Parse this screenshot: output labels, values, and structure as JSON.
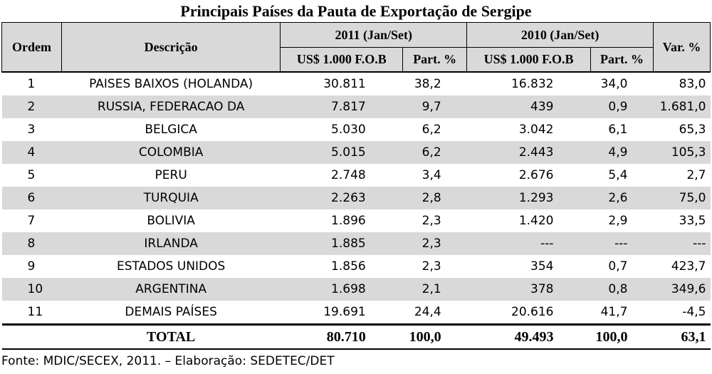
{
  "title": "Principais Países da Pauta de Exportação de Sergipe",
  "headers": {
    "ordem": "Ordem",
    "descricao": "Descrição",
    "period_2011": "2011 (Jan/Set)",
    "period_2010": "2010 (Jan/Set)",
    "value_col": "US$ 1.000 F.O.B",
    "part_col": "Part. %",
    "var_col": "Var. %"
  },
  "rows": [
    {
      "ordem": "1",
      "descricao": "PAISES BAIXOS (HOLANDA)",
      "v2011": "30.811",
      "p2011": "38,2",
      "v2010": "16.832",
      "p2010": "34,0",
      "var": "83,0"
    },
    {
      "ordem": "2",
      "descricao": "RUSSIA, FEDERACAO DA",
      "v2011": "7.817",
      "p2011": "9,7",
      "v2010": "439",
      "p2010": "0,9",
      "var": "1.681,0"
    },
    {
      "ordem": "3",
      "descricao": "BELGICA",
      "v2011": "5.030",
      "p2011": "6,2",
      "v2010": "3.042",
      "p2010": "6,1",
      "var": "65,3"
    },
    {
      "ordem": "4",
      "descricao": "COLOMBIA",
      "v2011": "5.015",
      "p2011": "6,2",
      "v2010": "2.443",
      "p2010": "4,9",
      "var": "105,3"
    },
    {
      "ordem": "5",
      "descricao": "PERU",
      "v2011": "2.748",
      "p2011": "3,4",
      "v2010": "2.676",
      "p2010": "5,4",
      "var": "2,7"
    },
    {
      "ordem": "6",
      "descricao": "TURQUIA",
      "v2011": "2.263",
      "p2011": "2,8",
      "v2010": "1.293",
      "p2010": "2,6",
      "var": "75,0"
    },
    {
      "ordem": "7",
      "descricao": "BOLIVIA",
      "v2011": "1.896",
      "p2011": "2,3",
      "v2010": "1.420",
      "p2010": "2,9",
      "var": "33,5"
    },
    {
      "ordem": "8",
      "descricao": "IRLANDA",
      "v2011": "1.885",
      "p2011": "2,3",
      "v2010": "---",
      "p2010": "---",
      "var": "---"
    },
    {
      "ordem": "9",
      "descricao": "ESTADOS UNIDOS",
      "v2011": "1.856",
      "p2011": "2,3",
      "v2010": "354",
      "p2010": "0,7",
      "var": "423,7"
    },
    {
      "ordem": "10",
      "descricao": "ARGENTINA",
      "v2011": "1.698",
      "p2011": "2,1",
      "v2010": "378",
      "p2010": "0,8",
      "var": "349,6"
    },
    {
      "ordem": "11",
      "descricao": "DEMAIS PAÍSES",
      "v2011": "19.691",
      "p2011": "24,4",
      "v2010": "20.616",
      "p2010": "41,7",
      "var": "-4,5"
    }
  ],
  "total": {
    "label": "TOTAL",
    "v2011": "80.710",
    "p2011": "100,0",
    "v2010": "49.493",
    "p2010": "100,0",
    "var": "63,1"
  },
  "source": "Fonte: MDIC/SECEX, 2011. – Elaboração: SEDETEC/DET"
}
